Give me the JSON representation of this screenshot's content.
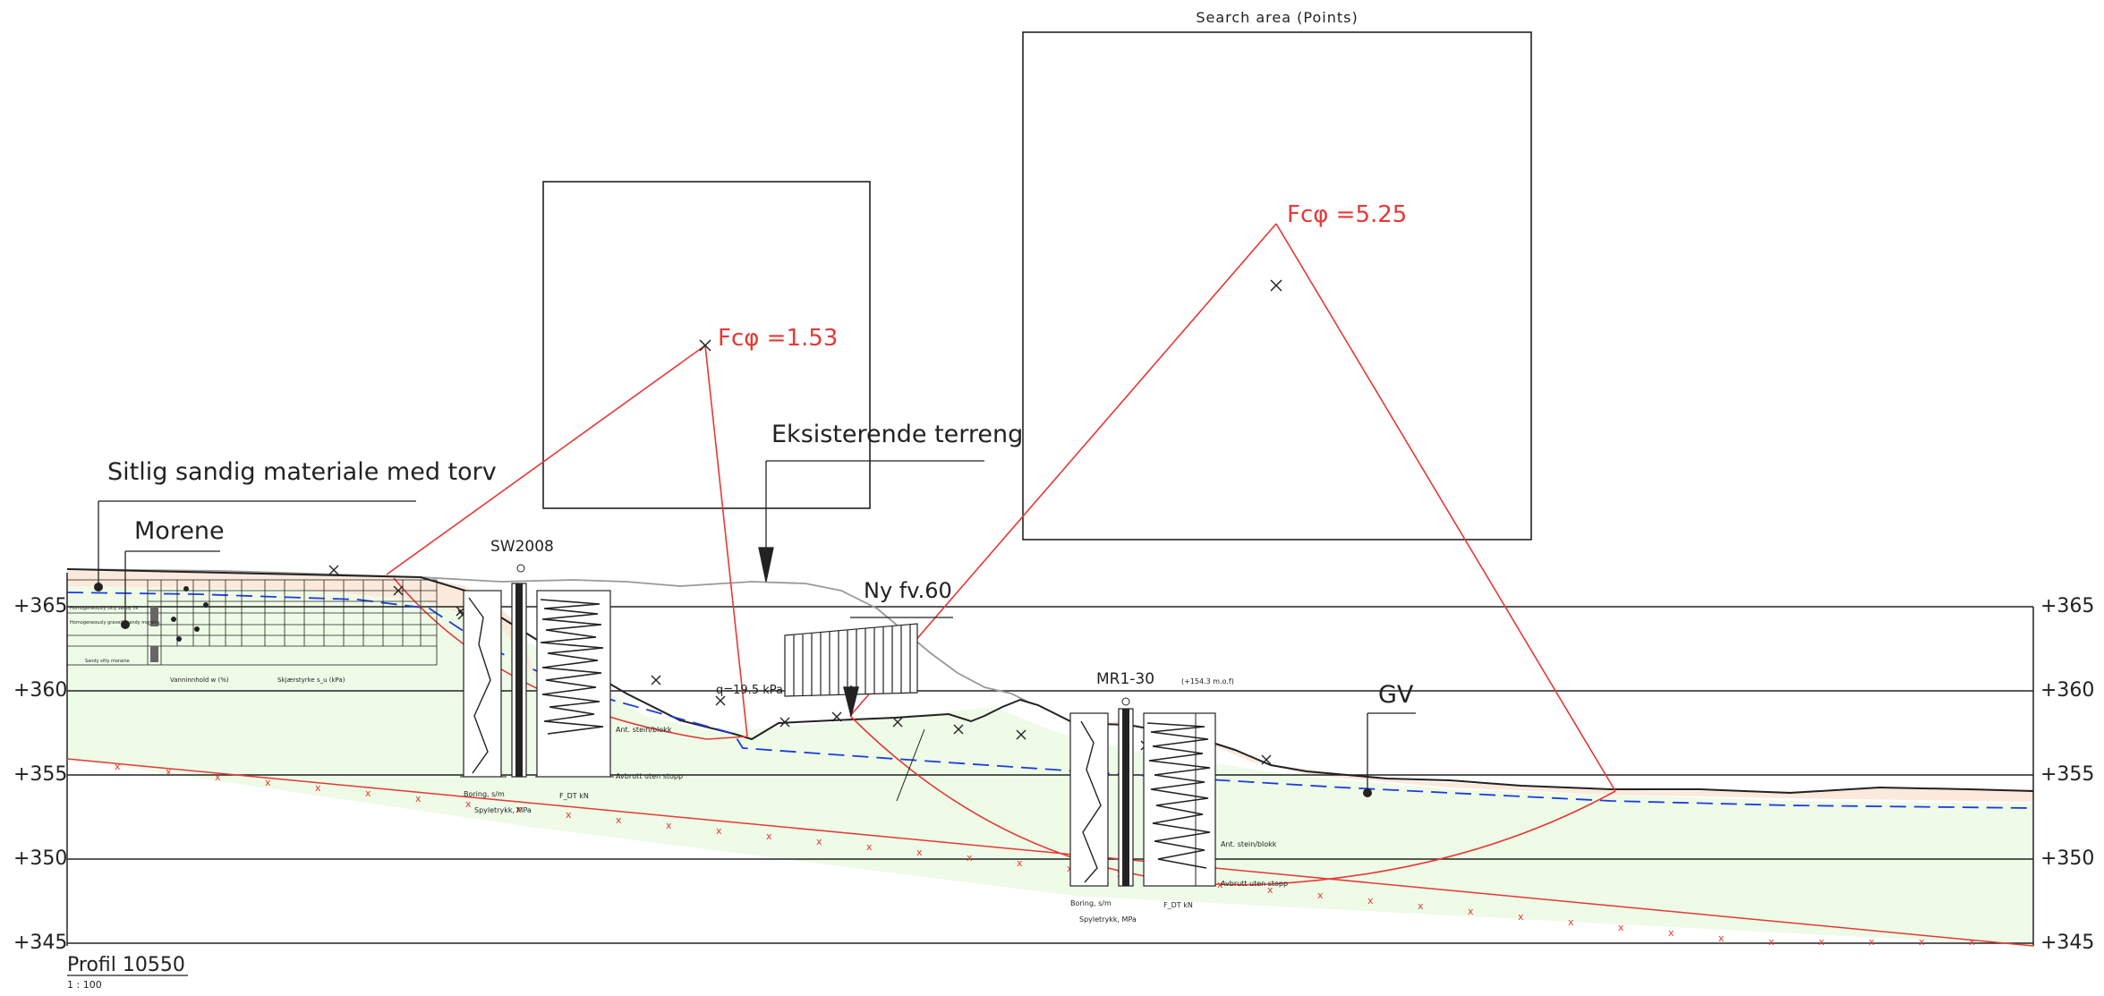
{
  "labels": {
    "search_area": "Search area (Points)",
    "fs1": "Fcφ  =1.53",
    "fs2": "Fcφ  =5.25",
    "existing_terrain": "Eksisterende terreng",
    "silty_sand": "Sitlig sandig materiale med torv",
    "moraine": "Morene",
    "borehole1": "SW2008",
    "new_road": "Ny fv.60",
    "load": "q=19.5 kPa",
    "borehole2": "MR1-30",
    "borehole2_note": "(+154.3 m.o.f)",
    "groundwater": "GV",
    "profile_title": "Profil 10550",
    "scale": "1 : 100"
  },
  "elevations": [
    "+365",
    "+360",
    "+355",
    "+350",
    "+345"
  ],
  "log_text": {
    "water_content": "Vanninnhold w (%)",
    "shear_strength": "Skjærstyrke s_u (kPa)",
    "drilling": "Boring, s/m",
    "push_resistance": "Spyletrykk, MPa",
    "fdt": "F_DT  kN",
    "end_stone": "Ant. stein/blokk",
    "stop": "Avbrutt uten stopp",
    "layer1": "Homogeneously silty sandy fill",
    "layer2": "Homogeneously gravelly sandy morainy",
    "layer3": "Sandy silty moraine"
  },
  "colors": {
    "slip": "#e53935",
    "groundwater_line": "#1e3adf",
    "moraine_fill": "#eefbe7",
    "peat_fill": "#fbe9dc",
    "line": "#222222"
  }
}
